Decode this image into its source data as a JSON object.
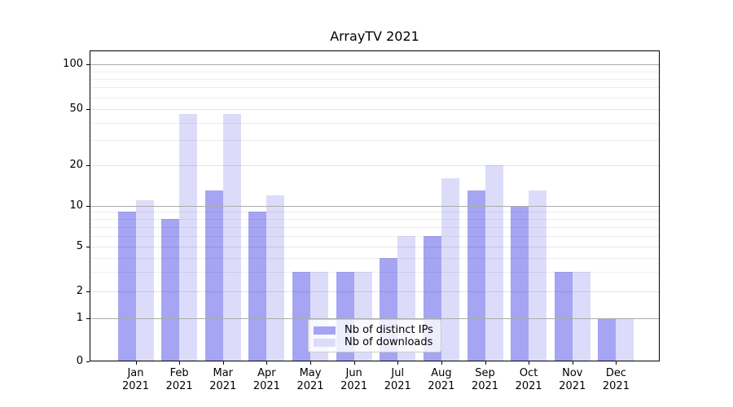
{
  "title": "ArrayTV 2021",
  "chart_data": {
    "type": "bar",
    "title": "ArrayTV 2021",
    "categories": [
      "Jan 2021",
      "Feb 2021",
      "Mar 2021",
      "Apr 2021",
      "May 2021",
      "Jun 2021",
      "Jul 2021",
      "Aug 2021",
      "Sep 2021",
      "Oct 2021",
      "Nov 2021",
      "Dec 2021"
    ],
    "series": [
      {
        "name": "Nb of distinct IPs",
        "color": "#a5a5f3",
        "values": [
          9,
          8,
          13,
          9,
          3,
          3,
          4,
          6,
          13,
          10,
          3,
          1
        ]
      },
      {
        "name": "Nb of downloads",
        "color": "#dcdcfa",
        "values": [
          11,
          46,
          46,
          12,
          3,
          3,
          6,
          16,
          20,
          13,
          3,
          1
        ]
      }
    ],
    "xlabel": "",
    "ylabel": "",
    "y_axis": {
      "scale": "symlog",
      "range": [
        0,
        125
      ],
      "tick_values": [
        0,
        1,
        2,
        5,
        10,
        20,
        50,
        100
      ],
      "tick_labels": [
        "0",
        "1",
        "2",
        "5",
        "10",
        "20",
        "50",
        "100"
      ],
      "major_grid_values": [
        1,
        10,
        100
      ],
      "sub_grid_values": [
        2,
        5,
        20,
        50
      ],
      "minor_grid_values": [
        3,
        4,
        6,
        7,
        8,
        9,
        30,
        40,
        60,
        70,
        80,
        90
      ]
    },
    "grid": {
      "major": true,
      "minor": true
    },
    "legend": {
      "position": "lower center",
      "items": [
        "Nb of distinct IPs",
        "Nb of downloads"
      ]
    }
  },
  "colors": {
    "background": "#ffffff",
    "spine": "#000000",
    "grid_major": "#ababab",
    "bar_distinct_ips": "#a5a5f3",
    "bar_downloads": "#dcdcfa"
  }
}
